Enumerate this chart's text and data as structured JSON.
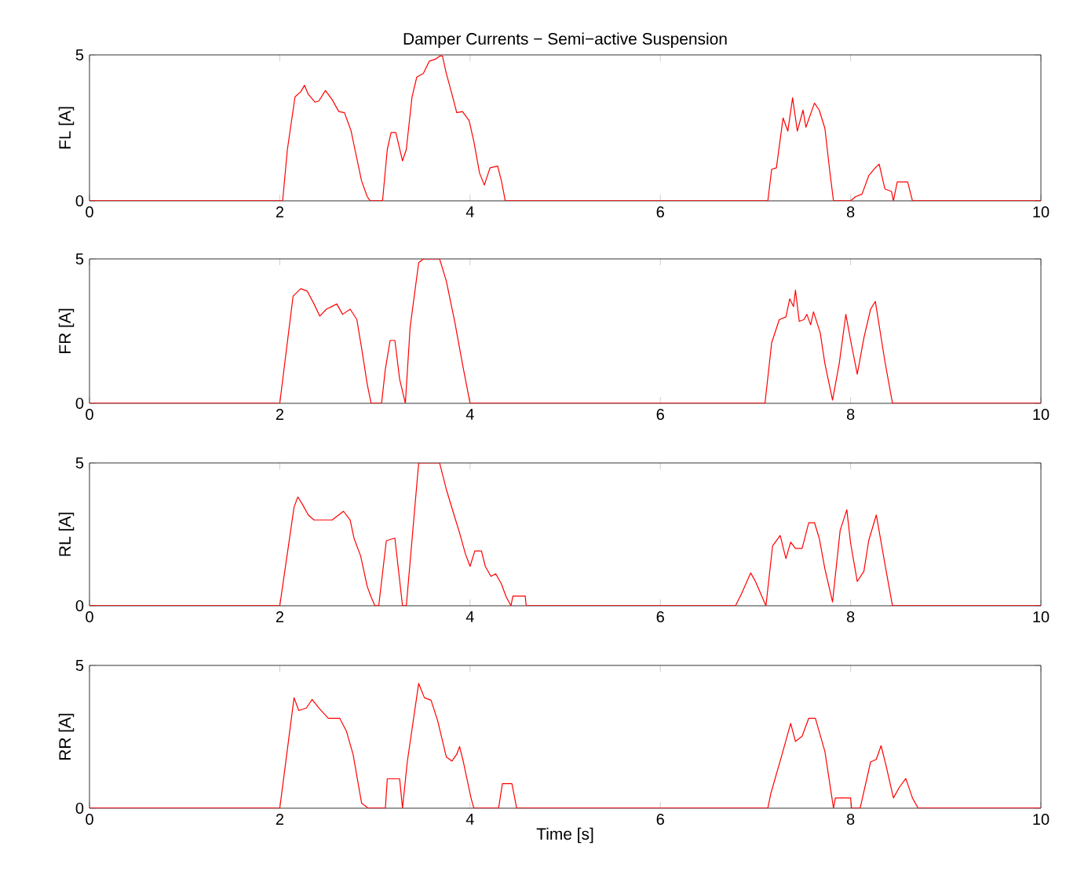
{
  "chart_data": [
    {
      "type": "line",
      "title": "Damper Currents − Semi−active Suspension",
      "ylabel": "FL [A]",
      "color": "#ff0000",
      "xlim": [
        0,
        10
      ],
      "xticks": [
        0,
        2,
        4,
        6,
        8,
        10
      ],
      "ylim": [
        0,
        5
      ],
      "yticks": [
        0,
        5
      ],
      "x": [
        0,
        2.0,
        2.03,
        2.08,
        2.16,
        2.22,
        2.26,
        2.3,
        2.37,
        2.41,
        2.48,
        2.55,
        2.62,
        2.68,
        2.75,
        2.79,
        2.86,
        2.92,
        2.95,
        3.08,
        3.13,
        3.17,
        3.22,
        3.29,
        3.33,
        3.39,
        3.44,
        3.51,
        3.57,
        3.64,
        3.68,
        3.71,
        3.75,
        3.81,
        3.86,
        3.92,
        3.99,
        4.04,
        4.1,
        4.15,
        4.21,
        4.29,
        4.33,
        4.37,
        7.13,
        7.17,
        7.22,
        7.29,
        7.34,
        7.39,
        7.44,
        7.5,
        7.53,
        7.62,
        7.67,
        7.73,
        7.78,
        7.82,
        8.0,
        8.05,
        8.12,
        8.19,
        8.25,
        8.3,
        8.36,
        8.43,
        8.45,
        8.49,
        8.6,
        8.65,
        10
      ],
      "values": [
        0,
        0,
        0,
        1.76,
        3.56,
        3.74,
        3.96,
        3.65,
        3.38,
        3.42,
        3.78,
        3.47,
        3.06,
        3.02,
        2.39,
        1.76,
        0.68,
        0.14,
        0,
        0,
        1.76,
        2.34,
        2.34,
        1.37,
        1.76,
        3.56,
        4.24,
        4.37,
        4.78,
        4.86,
        4.96,
        4.96,
        4.37,
        3.65,
        3.02,
        3.06,
        2.75,
        2.03,
        0.95,
        0.54,
        1.13,
        1.19,
        0.68,
        0,
        0,
        1.08,
        1.13,
        2.84,
        2.39,
        3.53,
        2.39,
        3.11,
        2.52,
        3.35,
        3.11,
        2.48,
        1.04,
        0,
        0,
        0.14,
        0.23,
        0.86,
        1.1,
        1.26,
        0.41,
        0.32,
        0,
        0.65,
        0.65,
        0,
        0
      ]
    },
    {
      "type": "line",
      "ylabel": "FR [A]",
      "color": "#ff0000",
      "xlim": [
        0,
        10
      ],
      "xticks": [
        0,
        2,
        4,
        6,
        8,
        10
      ],
      "ylim": [
        0,
        5
      ],
      "yticks": [
        0,
        5
      ],
      "x": [
        0,
        2.0,
        2.14,
        2.22,
        2.29,
        2.36,
        2.42,
        2.49,
        2.6,
        2.66,
        2.74,
        2.81,
        2.86,
        2.92,
        2.96,
        3.07,
        3.11,
        3.16,
        3.21,
        3.26,
        3.32,
        3.37,
        3.46,
        3.51,
        3.68,
        3.75,
        3.84,
        3.92,
        4.0,
        7.1,
        7.17,
        7.25,
        7.32,
        7.36,
        7.4,
        7.42,
        7.46,
        7.51,
        7.54,
        7.58,
        7.61,
        7.68,
        7.73,
        7.81,
        7.88,
        7.95,
        8.0,
        8.07,
        8.14,
        8.21,
        8.26,
        8.36,
        8.44,
        10
      ],
      "values": [
        0,
        0,
        3.71,
        3.97,
        3.88,
        3.44,
        3.02,
        3.26,
        3.44,
        3.08,
        3.26,
        2.9,
        1.91,
        0.65,
        0,
        0,
        1.19,
        2.18,
        2.18,
        0.83,
        0,
        2.63,
        4.87,
        5.0,
        5.0,
        4.24,
        2.81,
        1.37,
        0,
        0,
        2.09,
        2.9,
        2.99,
        3.62,
        3.35,
        3.92,
        2.84,
        2.9,
        3.08,
        2.72,
        3.17,
        2.45,
        1.37,
        0.11,
        1.37,
        3.08,
        2.18,
        1.01,
        2.27,
        3.26,
        3.53,
        1.46,
        0,
        0
      ]
    },
    {
      "type": "line",
      "ylabel": "RL [A]",
      "color": "#ff0000",
      "xlim": [
        0,
        10
      ],
      "xticks": [
        0,
        2,
        4,
        6,
        8,
        10
      ],
      "ylim": [
        0,
        5
      ],
      "yticks": [
        0,
        5
      ],
      "x": [
        0,
        2.0,
        2.15,
        2.19,
        2.24,
        2.3,
        2.36,
        2.55,
        2.67,
        2.74,
        2.78,
        2.85,
        2.92,
        2.96,
        3.0,
        3.04,
        3.12,
        3.21,
        3.29,
        3.33,
        3.46,
        3.68,
        3.75,
        3.84,
        3.89,
        3.95,
        4.0,
        4.05,
        4.12,
        4.16,
        4.22,
        4.27,
        4.33,
        4.38,
        4.43,
        4.45,
        4.58,
        4.59,
        6.79,
        6.85,
        6.95,
        7.0,
        7.11,
        7.18,
        7.26,
        7.32,
        7.37,
        7.42,
        7.49,
        7.56,
        7.62,
        7.67,
        7.73,
        7.81,
        7.89,
        7.96,
        8.0,
        8.07,
        8.14,
        8.19,
        8.27,
        8.36,
        8.44,
        10
      ],
      "values": [
        0,
        0,
        3.45,
        3.81,
        3.54,
        3.18,
        3.0,
        3.0,
        3.31,
        3.0,
        2.37,
        1.74,
        0.67,
        0.31,
        0,
        0,
        2.28,
        2.37,
        0,
        0,
        5.0,
        5.0,
        4.08,
        3.09,
        2.55,
        1.83,
        1.38,
        1.92,
        1.92,
        1.38,
        1.03,
        1.12,
        0.76,
        0.31,
        0,
        0.34,
        0.34,
        0,
        0,
        0.4,
        1.15,
        0.85,
        0,
        2.1,
        2.46,
        1.65,
        2.23,
        2.01,
        2.01,
        2.91,
        2.91,
        2.37,
        1.29,
        0.13,
        2.64,
        3.36,
        2.19,
        0.85,
        1.21,
        2.28,
        3.18,
        1.47,
        0,
        0
      ]
    },
    {
      "type": "line",
      "ylabel": "RR [A]",
      "xlabel": "Time [s]",
      "color": "#ff0000",
      "xlim": [
        0,
        10
      ],
      "xticks": [
        0,
        2,
        4,
        6,
        8,
        10
      ],
      "ylim": [
        0,
        5
      ],
      "yticks": [
        0,
        5
      ],
      "x": [
        0,
        2.0,
        2.15,
        2.2,
        2.28,
        2.34,
        2.41,
        2.51,
        2.63,
        2.7,
        2.77,
        2.86,
        2.93,
        3.11,
        3.13,
        3.26,
        3.29,
        3.34,
        3.46,
        3.52,
        3.59,
        3.66,
        3.75,
        3.81,
        3.86,
        3.89,
        3.93,
        4.01,
        4.04,
        4.3,
        4.34,
        4.44,
        4.49,
        7.13,
        7.16,
        7.28,
        7.37,
        7.42,
        7.49,
        7.56,
        7.63,
        7.73,
        7.82,
        7.84,
        8.0,
        8.01,
        8.1,
        8.21,
        8.27,
        8.32,
        8.37,
        8.45,
        8.51,
        8.58,
        8.65,
        8.71,
        10
      ],
      "values": [
        0,
        0,
        3.87,
        3.42,
        3.51,
        3.81,
        3.51,
        3.15,
        3.15,
        2.7,
        1.89,
        0.18,
        0,
        0,
        1.03,
        1.03,
        0,
        1.62,
        4.37,
        3.87,
        3.78,
        3.06,
        1.8,
        1.65,
        1.89,
        2.16,
        1.62,
        0.36,
        0,
        0,
        0.86,
        0.86,
        0,
        0,
        0.5,
        1.89,
        2.97,
        2.34,
        2.52,
        3.15,
        3.15,
        1.98,
        0,
        0.36,
        0.36,
        0,
        0,
        1.62,
        1.71,
        2.19,
        1.53,
        0.36,
        0.72,
        1.04,
        0.36,
        0,
        0
      ]
    }
  ]
}
